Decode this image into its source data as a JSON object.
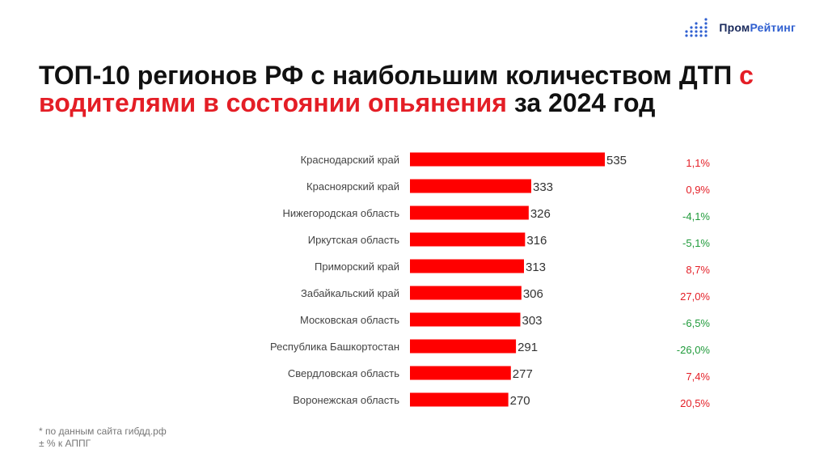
{
  "logo": {
    "part1": "Пром",
    "part2": "Рейтинг",
    "accent": "#2f5fd0",
    "dark": "#1a2a5c"
  },
  "title": {
    "part1": "ТОП-10  регионов РФ с наибольшим количеством ДТП ",
    "highlight": "с водителями в состоянии опьянения",
    "part2": " за 2024 год"
  },
  "colors": {
    "bar": "#ff0000",
    "positive_change": "#e41e26",
    "negative_change": "#1f9a3a"
  },
  "chart_data": {
    "type": "bar",
    "orientation": "horizontal",
    "categories": [
      "Краснодарский край",
      "Красноярский край",
      "Нижегородская область",
      "Иркутская область",
      "Приморский край",
      "Забайкальский край",
      "Московская область",
      "Республика Башкортостан",
      "Свердловская область",
      "Воронежская область"
    ],
    "values": [
      535,
      333,
      326,
      316,
      313,
      306,
      303,
      291,
      277,
      270
    ],
    "changes": [
      "1,1%",
      "0,9%",
      "-4,1%",
      "-5,1%",
      "8,7%",
      "27,0%",
      "-6,5%",
      "-26,0%",
      "7,4%",
      "20,5%"
    ],
    "xlim": [
      0,
      535
    ],
    "grid": false,
    "legend": "none"
  },
  "footnotes": [
    "* по данным сайта гибдд.рф",
    "± % к АППГ"
  ]
}
